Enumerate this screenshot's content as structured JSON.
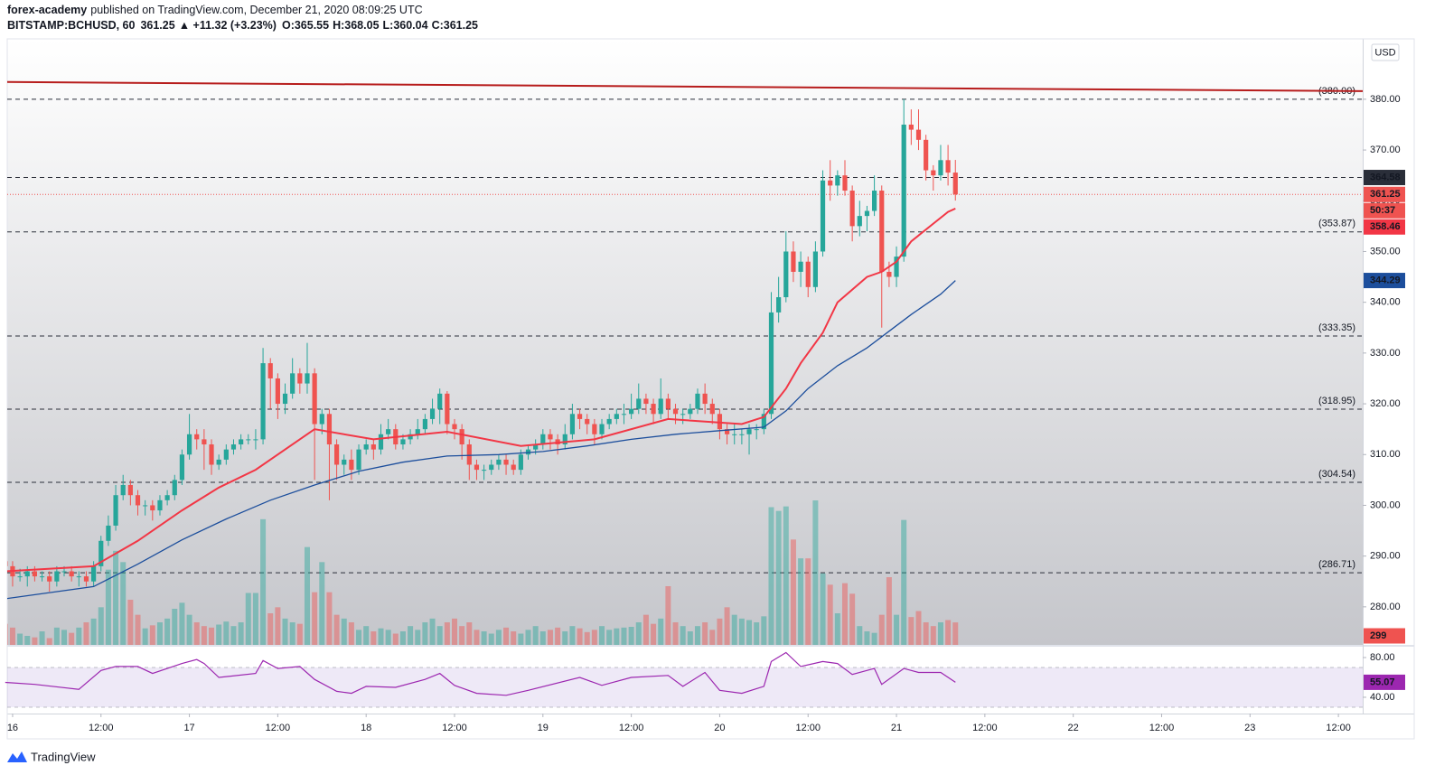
{
  "header": {
    "author": "forex-academy",
    "published": "published on TradingView.com, December 21, 2020 08:09:25 UTC",
    "symbol": "BITSTAMP:BCHUSD, 60",
    "last": "361.25",
    "change": "▲ +11.32 (+3.23%)",
    "open": "O:365.55",
    "high": "H:368.05",
    "low": "L:360.04",
    "close": "C:361.25"
  },
  "chart_data": {
    "type": "candlestick",
    "currency": "USD",
    "countdown": "50:37",
    "candles": {
      "up_color": "#26a69a",
      "down_color": "#ef5350",
      "x": [
        -1,
        0,
        1,
        2,
        3,
        4,
        5,
        6,
        7,
        8,
        9,
        10,
        11,
        12,
        13,
        14,
        15,
        16,
        17,
        18,
        19,
        20,
        21,
        22,
        23,
        24,
        25,
        26,
        27,
        28,
        29,
        30,
        31,
        32,
        33,
        34,
        35,
        36,
        37,
        38,
        39,
        40,
        41,
        42,
        43,
        44,
        45,
        46,
        47,
        48,
        49,
        50,
        51,
        52,
        53,
        54,
        55,
        56,
        57,
        58,
        59,
        60,
        61,
        62,
        63,
        64,
        65,
        66,
        67,
        68,
        69,
        70,
        71,
        72,
        73,
        74,
        75,
        76,
        77,
        78,
        79,
        80,
        81,
        82,
        83,
        84,
        85,
        86,
        87,
        88,
        89,
        90,
        91,
        92,
        93,
        94,
        95,
        96,
        97,
        98,
        99,
        100,
        101,
        102,
        103,
        104,
        105,
        106,
        107,
        108,
        109,
        110,
        111,
        112,
        113,
        114,
        115,
        116,
        117,
        118,
        119,
        120,
        121,
        122,
        123,
        124,
        125,
        126,
        127,
        128
      ],
      "open": [
        289,
        288,
        286,
        286,
        287,
        286,
        286,
        285,
        287,
        287,
        286,
        286,
        285,
        288,
        293,
        296,
        302,
        304,
        302,
        300,
        300,
        299,
        301,
        302,
        305,
        310,
        314,
        313,
        312,
        308,
        309,
        311,
        312,
        313,
        313,
        313,
        328,
        325,
        320,
        322,
        326,
        324,
        326,
        316,
        318,
        312,
        308,
        309,
        307,
        311,
        312,
        311,
        314,
        315,
        312,
        313,
        314,
        315,
        317,
        319,
        322,
        316,
        315,
        312,
        308,
        307,
        307,
        308,
        309,
        308,
        307,
        310,
        311,
        312,
        314,
        313,
        312,
        314,
        318,
        317,
        316,
        314,
        316,
        317,
        318,
        318,
        319,
        321,
        320,
        318,
        321,
        319,
        318,
        318,
        319,
        322,
        320,
        318,
        315,
        314,
        314,
        314,
        315,
        315,
        318,
        338,
        341,
        350,
        346,
        348,
        343,
        350,
        364,
        363,
        365,
        362,
        355,
        357,
        358,
        362,
        346,
        345,
        349,
        375,
        374,
        372,
        366,
        365,
        368,
        365.55
      ],
      "high": [
        291,
        289,
        287.5,
        288,
        288,
        287,
        287,
        288,
        288,
        288,
        287,
        287,
        289,
        294,
        298,
        304,
        306,
        305,
        303,
        301,
        301,
        302,
        303,
        306,
        311,
        318,
        315,
        315,
        313,
        310,
        312,
        313,
        314,
        314,
        315,
        331,
        329,
        326,
        324,
        329,
        327,
        332,
        327,
        319,
        319,
        313,
        310,
        311,
        312,
        313,
        313,
        316,
        317,
        316,
        314,
        315,
        317,
        318,
        321,
        323,
        322.5,
        317,
        316,
        313,
        309,
        308,
        309,
        310,
        310,
        309,
        311,
        312,
        313,
        315,
        315,
        314,
        316,
        320,
        319,
        318,
        317,
        317,
        318,
        319,
        320,
        322,
        324,
        322,
        321,
        325,
        322,
        320,
        319,
        320,
        323,
        324,
        321,
        319,
        316,
        316,
        315,
        316,
        316,
        319,
        342,
        345,
        354,
        352,
        350,
        349,
        352,
        366,
        368,
        366,
        368,
        363,
        360,
        359,
        365,
        363,
        348,
        351,
        380,
        378,
        378,
        373,
        367,
        371,
        371,
        368.05
      ],
      "low": [
        287,
        284,
        285,
        284,
        285,
        285,
        283,
        284,
        286,
        285,
        284,
        284,
        284,
        287,
        292,
        295,
        301,
        300,
        298,
        298,
        297,
        298,
        300,
        301,
        304,
        309,
        311,
        307,
        306,
        307,
        308,
        310,
        311,
        312,
        311,
        312,
        319,
        317,
        318,
        321,
        322,
        322,
        305,
        314,
        301,
        305,
        306,
        305,
        306,
        310,
        309,
        310,
        313,
        311,
        311,
        312,
        313,
        314,
        316,
        316,
        314,
        313,
        309,
        305,
        305,
        305,
        306,
        307,
        306,
        306,
        306,
        309,
        310,
        311,
        311,
        310,
        311,
        313,
        315,
        314,
        312,
        313,
        315,
        316,
        316,
        317,
        318,
        318,
        316,
        317,
        317,
        316,
        316,
        317,
        318,
        318,
        316,
        313,
        312,
        312,
        312,
        310,
        313,
        314,
        317,
        336,
        340,
        344,
        343,
        341,
        342,
        349,
        360,
        361,
        361,
        352,
        353,
        354,
        357,
        335,
        343,
        343,
        348,
        371,
        370,
        364,
        362,
        364,
        363,
        360.04
      ],
      "close": [
        288,
        286,
        286,
        287,
        286,
        286,
        285,
        287,
        287,
        286,
        286,
        285,
        288,
        293,
        296,
        302,
        304,
        302,
        300,
        300,
        299,
        301,
        302,
        305,
        310,
        314,
        313,
        312,
        308,
        309,
        311,
        312,
        313,
        313,
        313,
        328,
        325,
        320,
        322,
        326,
        324,
        326,
        316,
        318,
        312,
        308,
        309,
        307,
        311,
        312,
        311,
        314,
        315,
        312,
        313,
        314,
        315,
        317,
        319,
        322,
        316,
        315,
        312,
        308,
        307,
        307,
        308,
        309,
        308,
        307,
        310,
        311,
        312,
        314,
        313,
        312,
        314,
        318,
        317,
        316,
        314,
        316,
        317,
        318,
        318,
        319,
        321,
        320,
        318,
        321,
        319,
        318,
        318,
        319,
        322,
        320,
        318,
        315,
        314,
        314,
        314,
        315,
        315,
        318,
        338,
        341,
        350,
        346,
        348,
        343,
        350,
        364,
        363,
        365,
        362,
        355,
        357,
        358,
        362,
        346,
        345,
        349,
        375,
        374,
        372,
        366,
        365,
        368,
        365.55,
        361.25
      ]
    },
    "volume": {
      "lim": [
        0,
        2400
      ],
      "values": [
        280,
        230,
        150,
        120,
        100,
        180,
        90,
        230,
        200,
        160,
        230,
        300,
        350,
        500,
        1000,
        1250,
        1100,
        600,
        400,
        220,
        260,
        300,
        350,
        480,
        560,
        400,
        300,
        250,
        230,
        270,
        310,
        250,
        300,
        690,
        690,
        1670,
        420,
        500,
        350,
        300,
        280,
        1300,
        700,
        1100,
        700,
        400,
        350,
        300,
        200,
        250,
        180,
        220,
        200,
        150,
        180,
        250,
        200,
        300,
        350,
        250,
        300,
        350,
        250,
        300,
        200,
        180,
        150,
        200,
        230,
        180,
        150,
        200,
        250,
        180,
        200,
        230,
        180,
        250,
        220,
        170,
        200,
        250,
        200,
        220,
        230,
        240,
        300,
        400,
        280,
        350,
        780,
        300,
        250,
        180,
        250,
        300,
        200,
        350,
        500,
        400,
        350,
        330,
        300,
        380,
        1830,
        1780,
        1840,
        1400,
        1150,
        1150,
        1920,
        950,
        800,
        420,
        820,
        680,
        250,
        180,
        160,
        400,
        900,
        400,
        1660,
        370,
        450,
        300,
        250,
        300,
        330,
        299
      ]
    },
    "moving_averages": [
      {
        "color": "#f23645",
        "x": [
          -1,
          11,
          17,
          23,
          28,
          33,
          41,
          49,
          59,
          69,
          79,
          89,
          99,
          102,
          105,
          107,
          110,
          112,
          116,
          118,
          120,
          122,
          125,
          127,
          128
        ],
        "values": [
          287,
          288,
          293,
          299,
          303.5,
          307,
          315,
          313,
          314.5,
          311.7,
          313,
          317,
          316,
          317.4,
          323,
          328,
          334,
          340,
          345,
          346,
          348,
          352,
          355.5,
          357.8,
          358.46
        ]
      },
      {
        "color": "#1c4e9c",
        "x": [
          -1,
          11,
          17,
          23,
          29,
          35,
          41,
          47,
          53,
          59,
          66,
          72,
          78,
          84,
          90,
          96,
          102,
          105,
          108,
          112,
          116,
          119,
          122,
          126,
          128
        ],
        "values": [
          281.6,
          284,
          288.4,
          293.2,
          297.3,
          301,
          304,
          306.7,
          308.5,
          309.7,
          310,
          310.6,
          311.7,
          313,
          314,
          314.7,
          315.4,
          318.6,
          323,
          327.5,
          331,
          334.3,
          337.6,
          341.6,
          344.29
        ]
      }
    ],
    "trendline": {
      "color": "#b71c1c",
      "x": [
        -0.73,
        183.3
      ],
      "values": [
        383.4,
        381.6
      ]
    },
    "levels": [
      {
        "value": 380,
        "label": "(380.00)"
      },
      {
        "value": 353.87,
        "label": "(353.87)"
      },
      {
        "value": 333.35,
        "label": "(333.35)"
      },
      {
        "value": 318.95,
        "label": "(318.95)"
      },
      {
        "value": 304.54,
        "label": "(304.54)"
      },
      {
        "value": 286.71,
        "label": "(286.71)"
      }
    ],
    "price_line": 364.58,
    "xlim": [
      -0.73,
      183.3
    ],
    "xticks": [
      {
        "value": 0,
        "label": "16"
      },
      {
        "value": 12,
        "label": "12:00"
      },
      {
        "value": 24,
        "label": "17"
      },
      {
        "value": 36,
        "label": "12:00"
      },
      {
        "value": 48,
        "label": "18"
      },
      {
        "value": 60,
        "label": "12:00"
      },
      {
        "value": 72,
        "label": "19"
      },
      {
        "value": 84,
        "label": "12:00"
      },
      {
        "value": 96,
        "label": "20"
      },
      {
        "value": 108,
        "label": "12:00"
      },
      {
        "value": 120,
        "label": "21"
      },
      {
        "value": 132,
        "label": "12:00"
      },
      {
        "value": 144,
        "label": "22"
      },
      {
        "value": 156,
        "label": "12:00"
      },
      {
        "value": 168,
        "label": "23"
      },
      {
        "value": 180,
        "label": "12:00"
      }
    ],
    "ylim": [
      272.5,
      391.9
    ],
    "yticks": [
      {
        "value": 380,
        "label": "380.00"
      },
      {
        "value": 370,
        "label": "370.00"
      },
      {
        "value": 360,
        "label": "360.00"
      },
      {
        "value": 350,
        "label": "350.00"
      },
      {
        "value": 340,
        "label": "340.00"
      },
      {
        "value": 330,
        "label": "330.00"
      },
      {
        "value": 320,
        "label": "320.00"
      },
      {
        "value": 310,
        "label": "310.00"
      },
      {
        "value": 300,
        "label": "300.00"
      },
      {
        "value": 290,
        "label": "290.00"
      },
      {
        "value": 280,
        "label": "280.00"
      }
    ],
    "rsi": {
      "color": "#9c27b0",
      "band": [
        30,
        70
      ],
      "ylim": [
        23.6,
        90.9
      ],
      "yticks": [
        {
          "value": 80,
          "label": "80.00"
        },
        {
          "value": 40,
          "label": "40.00"
        }
      ],
      "x": [
        -1,
        3,
        9,
        12,
        14,
        17,
        19,
        23,
        25,
        26,
        28,
        33,
        34,
        36,
        39,
        41,
        44,
        46,
        48,
        52,
        56,
        58,
        60,
        63,
        67,
        70,
        77,
        80,
        84,
        89,
        91,
        94,
        96,
        99,
        102,
        103,
        105,
        107,
        110,
        112,
        114,
        117,
        118,
        121,
        123,
        126,
        128
      ],
      "values": [
        55,
        53,
        48,
        67,
        71,
        71,
        64,
        74,
        78,
        74,
        60,
        64,
        77,
        69,
        71,
        58,
        46,
        44,
        51,
        50,
        58,
        64,
        52,
        44,
        42,
        47,
        60,
        52,
        60,
        62,
        51,
        65,
        47,
        44,
        51,
        76,
        85,
        71,
        76,
        74,
        63,
        69,
        53,
        69,
        65,
        65,
        55.07
      ]
    }
  },
  "footer": {
    "brand": "TradingView"
  }
}
